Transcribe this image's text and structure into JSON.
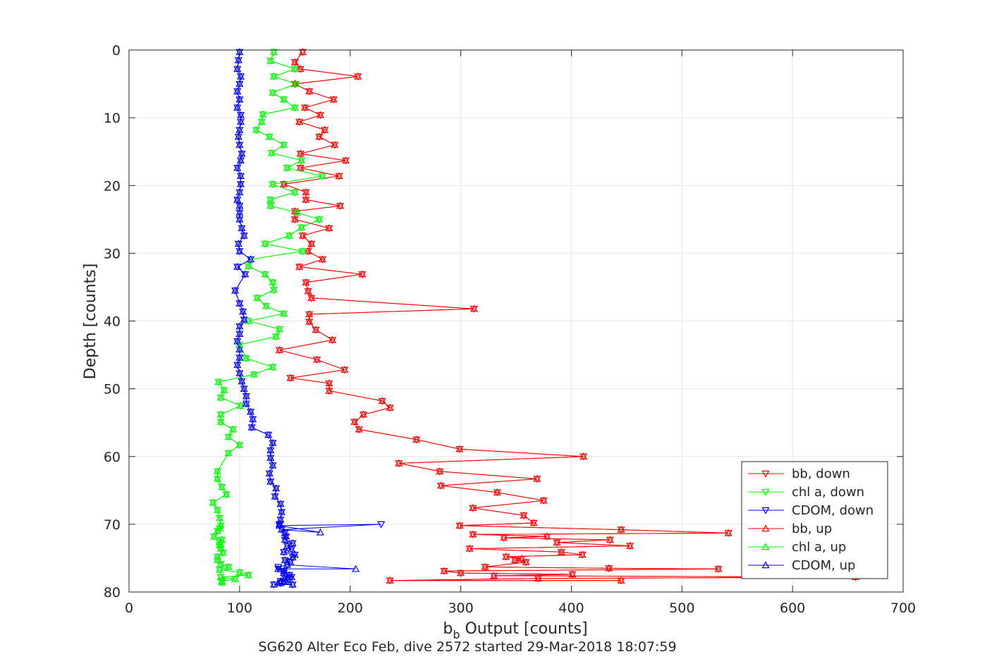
{
  "chart_data": {
    "type": "line",
    "xlabel_main": "b",
    "xlabel_sub": "b",
    "xlabel_rest": " Output [counts]",
    "ylabel": "Depth [counts]",
    "caption": "SG620 Alter Eco Feb, dive 2572 started 29-Mar-2018 18:07:59",
    "xlim": [
      0,
      700
    ],
    "ylim": [
      0,
      80
    ],
    "y_reversed": true,
    "grid": true,
    "legend_position": "bottom-right",
    "xticks": [
      "0",
      "100",
      "200",
      "300",
      "400",
      "500",
      "600",
      "700"
    ],
    "yticks": [
      "0",
      "10",
      "20",
      "30",
      "40",
      "50",
      "60",
      "70",
      "80"
    ],
    "colors": {
      "red": "#ff0000",
      "green": "#00ff00",
      "blue": "#0000ff",
      "grid": "#e6e6e6",
      "axis": "#262626"
    },
    "series": [
      {
        "name": "bb, down",
        "color": "#ff0000",
        "marker": "triangle-down",
        "x": [
          157,
          150,
          155,
          207,
          150,
          163,
          185,
          159,
          173,
          154,
          177,
          172,
          186,
          155,
          196,
          155,
          190,
          140,
          160,
          160,
          191,
          150,
          150,
          181,
          157,
          165,
          162,
          175,
          154,
          211,
          160,
          162,
          165,
          312,
          163,
          163,
          169,
          184,
          136,
          170,
          195,
          146,
          181,
          181,
          229,
          236,
          212,
          204,
          208,
          260,
          299,
          411,
          244,
          281,
          369,
          282,
          333,
          375,
          311,
          357,
          366,
          299,
          445,
          542,
          311,
          378,
          339,
          435,
          387,
          453,
          308,
          391,
          410,
          341,
          355,
          349,
          359,
          322,
          434,
          533,
          285,
          300,
          401,
          330,
          657,
          370,
          236,
          445
        ],
        "y": [
          0.3,
          1.8,
          2.8,
          3.9,
          5.0,
          6.1,
          7.3,
          8.5,
          9.6,
          10.6,
          11.8,
          12.8,
          14.0,
          15.3,
          16.3,
          17.4,
          18.6,
          19.8,
          21.0,
          22.1,
          23.0,
          23.8,
          25.0,
          26.3,
          27.4,
          28.6,
          29.7,
          30.9,
          32.0,
          33.1,
          34.3,
          35.6,
          36.6,
          38.2,
          39.0,
          40.1,
          41.3,
          42.8,
          44.3,
          45.7,
          47.2,
          48.4,
          49.2,
          50.3,
          51.8,
          52.8,
          53.8,
          54.9,
          56.0,
          57.5,
          58.9,
          60.0,
          61.0,
          62.2,
          63.3,
          64.3,
          65.3,
          66.5,
          67.6,
          68.7,
          69.8,
          70.2,
          70.8,
          71.3,
          71.5,
          71.8,
          72.0,
          72.3,
          72.7,
          73.2,
          73.6,
          74.1,
          74.5,
          74.8,
          75.1,
          75.3,
          75.6,
          76.3,
          76.5,
          76.6,
          76.9,
          77.2,
          77.4,
          77.6,
          77.8,
          78.0,
          78.3,
          78.3
        ]
      },
      {
        "name": "chl a, down",
        "color": "#00ff00",
        "marker": "triangle-down",
        "x": [
          131,
          128,
          150,
          131,
          151,
          130,
          140,
          150,
          121,
          120,
          115,
          127,
          140,
          129,
          156,
          143,
          175,
          130,
          150,
          128,
          128,
          152,
          172,
          156,
          145,
          123,
          157,
          110,
          108,
          123,
          130,
          131,
          116,
          124,
          140,
          108,
          136,
          133,
          100,
          106,
          130,
          113,
          81,
          86,
          83,
          101,
          83,
          83,
          94,
          90,
          100,
          90,
          80,
          80,
          84,
          88,
          76,
          80,
          82,
          83,
          82,
          80,
          77,
          84,
          82,
          82,
          83,
          85,
          80,
          80,
          83,
          90,
          82,
          100,
          108,
          83,
          96,
          84,
          84
        ],
        "y": [
          0.3,
          1.6,
          2.8,
          3.9,
          5.0,
          6.3,
          7.3,
          8.5,
          9.5,
          10.6,
          11.8,
          12.8,
          14.0,
          15.2,
          16.3,
          17.4,
          18.6,
          19.8,
          21.0,
          22.1,
          23.0,
          24.0,
          25.0,
          26.2,
          27.4,
          28.6,
          29.7,
          30.9,
          31.9,
          33.1,
          34.3,
          35.4,
          36.6,
          37.8,
          38.9,
          40.0,
          41.2,
          42.3,
          43.5,
          45.5,
          46.8,
          47.9,
          49.0,
          50.2,
          51.3,
          52.5,
          53.8,
          54.9,
          56.0,
          57.1,
          58.3,
          59.5,
          62.2,
          63.3,
          64.5,
          65.6,
          66.8,
          67.9,
          69.1,
          70.2,
          70.6,
          71.0,
          71.8,
          72.3,
          72.7,
          73.1,
          73.6,
          74.2,
          74.8,
          75.3,
          75.9,
          76.3,
          76.7,
          77.1,
          77.5,
          77.8,
          78.1,
          78.4,
          78.6
        ]
      },
      {
        "name": "CDOM, down",
        "color": "#0000ff",
        "marker": "triangle-down",
        "x": [
          100,
          99,
          98,
          101,
          100,
          98,
          100,
          98,
          101,
          101,
          100,
          99,
          100,
          102,
          101,
          98,
          101,
          101,
          100,
          98,
          100,
          100,
          100,
          102,
          104,
          99,
          100,
          110,
          98,
          105,
          96,
          100,
          103,
          104,
          100,
          100,
          98,
          100,
          100,
          98,
          100,
          102,
          104,
          106,
          106,
          110,
          112,
          111,
          126,
          130,
          128,
          128,
          130,
          127,
          128,
          133,
          132,
          137,
          138,
          137,
          136,
          136,
          228,
          138,
          141,
          142,
          141,
          148,
          143,
          147,
          140,
          150,
          148,
          141,
          146,
          143,
          135,
          135,
          140,
          140,
          145,
          147,
          141,
          144,
          137,
          140,
          137,
          148,
          131
        ],
        "y": [
          0.3,
          1.5,
          2.8,
          3.9,
          5.0,
          6.1,
          7.3,
          8.5,
          9.6,
          10.6,
          11.8,
          12.8,
          14.0,
          15.3,
          16.3,
          17.4,
          18.6,
          19.8,
          21.0,
          22.1,
          23.0,
          24.0,
          25.0,
          26.3,
          27.4,
          28.6,
          29.7,
          30.9,
          32.0,
          33.1,
          35.5,
          37.4,
          38.6,
          39.8,
          40.8,
          41.9,
          43.0,
          44.2,
          45.4,
          46.5,
          47.7,
          48.9,
          50.0,
          51.1,
          52.2,
          53.4,
          54.5,
          55.7,
          56.8,
          58.0,
          59.1,
          60.2,
          61.3,
          62.5,
          63.7,
          64.7,
          65.9,
          67.0,
          68.2,
          69.3,
          70.0,
          70.2,
          70.0,
          70.8,
          71.3,
          71.8,
          72.3,
          72.8,
          73.2,
          73.7,
          74.1,
          74.5,
          74.9,
          75.3,
          75.6,
          76.0,
          76.3,
          76.6,
          76.9,
          77.2,
          77.5,
          77.8,
          78.0,
          78.2,
          78.4,
          78.5,
          78.7,
          78.9,
          78.9
        ]
      },
      {
        "name": "bb, up",
        "color": "#ff0000",
        "marker": "triangle-up",
        "x": [
          157,
          150,
          155,
          207,
          150,
          163,
          185,
          159,
          173,
          154,
          177,
          172,
          186,
          155,
          196,
          155,
          190,
          140,
          160,
          160,
          191,
          150,
          150,
          181,
          157,
          165,
          162,
          175,
          154,
          211,
          160,
          162,
          165,
          312,
          163,
          163,
          169,
          184,
          136,
          170,
          195,
          146,
          181,
          181,
          229,
          236,
          212,
          204,
          208,
          260,
          299,
          411,
          244,
          281,
          369,
          282,
          333,
          375,
          311,
          357,
          366,
          299,
          445,
          542,
          311,
          378,
          339,
          435,
          387,
          453,
          308,
          391,
          410,
          341,
          355,
          349,
          359,
          322,
          434,
          533,
          285,
          300,
          401,
          330,
          657,
          370,
          236,
          445
        ],
        "y": [
          0.3,
          1.8,
          2.8,
          3.9,
          5.0,
          6.1,
          7.3,
          8.5,
          9.6,
          10.6,
          11.8,
          12.8,
          14.0,
          15.3,
          16.3,
          17.4,
          18.6,
          19.8,
          21.0,
          22.1,
          23.0,
          23.8,
          25.0,
          26.3,
          27.4,
          28.6,
          29.7,
          30.9,
          32.0,
          33.1,
          34.3,
          35.6,
          36.6,
          38.2,
          39.0,
          40.1,
          41.3,
          42.8,
          44.3,
          45.7,
          47.2,
          48.4,
          49.2,
          50.3,
          51.8,
          52.8,
          53.8,
          54.9,
          56.0,
          57.5,
          58.9,
          60.0,
          61.0,
          62.2,
          63.3,
          64.3,
          65.3,
          66.5,
          67.6,
          68.7,
          69.8,
          70.2,
          70.8,
          71.3,
          71.5,
          71.8,
          72.0,
          72.3,
          72.7,
          73.2,
          73.6,
          74.1,
          74.5,
          74.8,
          75.1,
          75.3,
          75.6,
          76.3,
          76.5,
          76.6,
          76.9,
          77.2,
          77.4,
          77.6,
          77.8,
          78.0,
          78.3,
          78.3
        ]
      },
      {
        "name": "chl a, up",
        "color": "#00ff00",
        "marker": "triangle-up",
        "x": [
          131,
          128,
          150,
          131,
          151,
          130,
          140,
          150,
          121,
          120,
          115,
          127,
          140,
          129,
          156,
          143,
          175,
          130,
          150,
          128,
          128,
          152,
          172,
          156,
          145,
          123,
          157,
          110,
          108,
          123,
          130,
          131,
          116,
          124,
          140,
          108,
          136,
          133,
          100,
          106,
          130,
          113,
          81,
          86,
          83,
          101,
          83,
          83,
          94,
          90,
          100,
          90,
          80,
          80,
          84,
          88,
          76,
          80,
          82,
          83,
          82,
          80,
          77,
          84,
          82,
          82,
          83,
          85,
          80,
          80,
          83,
          90,
          82,
          100,
          108,
          83,
          96,
          84,
          84
        ],
        "y": [
          0.3,
          1.6,
          2.8,
          3.9,
          5.0,
          6.3,
          7.3,
          8.5,
          9.5,
          10.6,
          11.8,
          12.8,
          14.0,
          15.2,
          16.3,
          17.4,
          18.6,
          19.8,
          21.0,
          22.1,
          23.0,
          24.0,
          25.0,
          26.2,
          27.4,
          28.6,
          29.7,
          30.9,
          31.9,
          33.1,
          34.3,
          35.4,
          36.6,
          37.8,
          38.9,
          40.0,
          41.2,
          42.3,
          43.5,
          45.5,
          46.8,
          47.9,
          49.0,
          50.2,
          51.3,
          52.5,
          53.8,
          54.9,
          56.0,
          57.1,
          58.3,
          59.5,
          62.2,
          63.3,
          64.5,
          65.6,
          66.8,
          67.9,
          69.1,
          70.2,
          70.6,
          71.0,
          71.8,
          72.3,
          72.7,
          73.1,
          73.6,
          74.2,
          74.8,
          75.3,
          75.9,
          76.3,
          76.7,
          77.1,
          77.5,
          77.8,
          78.1,
          78.4,
          78.6
        ]
      },
      {
        "name": "CDOM, up",
        "color": "#0000ff",
        "marker": "triangle-up",
        "x": [
          100,
          99,
          98,
          101,
          100,
          98,
          100,
          98,
          101,
          101,
          100,
          99,
          100,
          102,
          101,
          98,
          101,
          101,
          100,
          98,
          100,
          100,
          100,
          102,
          104,
          99,
          100,
          110,
          98,
          105,
          96,
          100,
          103,
          104,
          100,
          100,
          98,
          100,
          100,
          98,
          100,
          102,
          104,
          106,
          106,
          110,
          112,
          111,
          126,
          130,
          128,
          128,
          130,
          127,
          128,
          133,
          132,
          137,
          138,
          137,
          136,
          136,
          173,
          138,
          141,
          142,
          141,
          148,
          143,
          147,
          140,
          150,
          148,
          141,
          146,
          143,
          205,
          135,
          140,
          140,
          145,
          147,
          141,
          144,
          137,
          140,
          137,
          148,
          131
        ],
        "y": [
          0.3,
          1.5,
          2.8,
          3.9,
          5.0,
          6.1,
          7.3,
          8.5,
          9.6,
          10.6,
          11.8,
          12.8,
          14.0,
          15.3,
          16.3,
          17.4,
          18.6,
          19.8,
          21.0,
          22.1,
          23.0,
          24.0,
          25.0,
          26.3,
          27.4,
          28.6,
          29.7,
          30.9,
          32.0,
          33.1,
          35.5,
          37.4,
          38.6,
          39.8,
          40.8,
          41.9,
          43.0,
          44.2,
          45.4,
          46.5,
          47.7,
          48.9,
          50.0,
          51.1,
          52.2,
          53.4,
          54.5,
          55.7,
          56.8,
          58.0,
          59.1,
          60.2,
          61.3,
          62.5,
          63.7,
          64.7,
          65.9,
          67.0,
          68.2,
          69.3,
          70.0,
          70.2,
          71.2,
          70.8,
          71.3,
          71.8,
          72.3,
          72.8,
          73.2,
          73.7,
          74.1,
          74.5,
          74.9,
          75.3,
          75.6,
          76.0,
          76.6,
          76.6,
          76.9,
          77.2,
          77.5,
          77.8,
          78.0,
          78.2,
          78.4,
          78.5,
          78.7,
          78.9,
          78.9
        ]
      }
    ]
  }
}
